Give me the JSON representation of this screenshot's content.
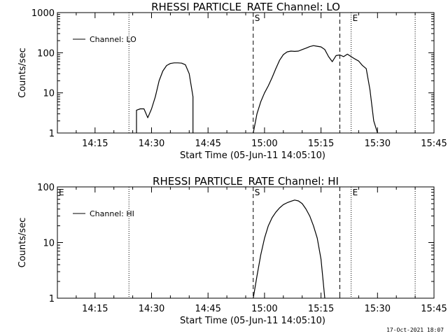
{
  "footer_stamp": "17-Oct-2021 18:07",
  "chart_data": [
    {
      "type": "line",
      "title": "RHESSI PARTICLE_RATE Channel: LO",
      "xlabel": "Start Time (05-Jun-11 14:05:10)",
      "ylabel": "Counts/sec",
      "yscale": "log",
      "ylim": [
        1,
        1000
      ],
      "xlim_minutes": [
        0,
        100
      ],
      "x_ticks": [
        "14:15",
        "14:30",
        "14:45",
        "15:00",
        "15:15",
        "15:30",
        "15:45"
      ],
      "y_ticks": [
        "1",
        "10",
        "100",
        "1000"
      ],
      "legend": {
        "label": "Channel: LO",
        "placement": "top-left"
      },
      "markers": [
        {
          "type": "dotted",
          "x": "14:24",
          "label": ""
        },
        {
          "type": "dashed",
          "x": "14:57",
          "label": "S"
        },
        {
          "type": "dashed",
          "x": "15:20",
          "label": ""
        },
        {
          "type": "dotted",
          "x": "15:23",
          "label": "E"
        },
        {
          "type": "dotted",
          "x": "15:40",
          "label": ""
        }
      ],
      "series": [
        {
          "name": "Channel: LO",
          "segments": [
            [
              [
                "14:26",
                1
              ],
              [
                "14:26",
                3.7
              ],
              [
                "14:27",
                4.0
              ],
              [
                "14:28",
                4.0
              ],
              [
                "14:29",
                2.4
              ],
              [
                "14:30",
                4.0
              ],
              [
                "14:31",
                8
              ],
              [
                "14:32",
                20
              ],
              [
                "14:33",
                35
              ],
              [
                "14:34",
                48
              ],
              [
                "14:35",
                54
              ],
              [
                "14:36",
                56
              ],
              [
                "14:37",
                56
              ],
              [
                "14:38",
                55
              ],
              [
                "14:39",
                50
              ],
              [
                "14:40",
                30
              ],
              [
                "14:41",
                8
              ],
              [
                "14:41",
                1
              ]
            ],
            [
              [
                "14:57",
                1
              ],
              [
                "14:58",
                3
              ],
              [
                "14:59",
                6
              ],
              [
                "15:00",
                10
              ],
              [
                "15:01",
                15
              ],
              [
                "15:02",
                24
              ],
              [
                "15:03",
                40
              ],
              [
                "15:04",
                65
              ],
              [
                "15:05",
                90
              ],
              [
                "15:06",
                105
              ],
              [
                "15:07",
                110
              ],
              [
                "15:08",
                108
              ],
              [
                "15:09",
                110
              ],
              [
                "15:10",
                120
              ],
              [
                "15:11",
                130
              ],
              [
                "15:12",
                142
              ],
              [
                "15:13",
                150
              ],
              [
                "15:14",
                145
              ],
              [
                "15:15",
                140
              ],
              [
                "15:16",
                120
              ],
              [
                "15:17",
                80
              ],
              [
                "15:18",
                60
              ],
              [
                "15:19",
                85
              ],
              [
                "15:20",
                88
              ],
              [
                "15:21",
                80
              ],
              [
                "15:22",
                92
              ],
              [
                "15:23",
                80
              ],
              [
                "15:24",
                70
              ],
              [
                "15:25",
                62
              ],
              [
                "15:26",
                48
              ],
              [
                "15:27",
                40
              ],
              [
                "15:28",
                12
              ],
              [
                "15:29",
                2
              ],
              [
                "15:30",
                1
              ]
            ]
          ]
        }
      ]
    },
    {
      "type": "line",
      "title": "RHESSI PARTICLE_RATE Channel: HI",
      "xlabel": "Start Time (05-Jun-11 14:05:10)",
      "ylabel": "Counts/sec",
      "yscale": "log",
      "ylim": [
        1,
        100
      ],
      "xlim_minutes": [
        0,
        100
      ],
      "x_ticks": [
        "14:15",
        "14:30",
        "14:45",
        "15:00",
        "15:15",
        "15:30",
        "15:45"
      ],
      "y_ticks": [
        "1",
        "10",
        "100"
      ],
      "legend": {
        "label": "Channel: HI",
        "placement": "top-left"
      },
      "corner_label": "E",
      "markers": [
        {
          "type": "dotted",
          "x": "14:24",
          "label": ""
        },
        {
          "type": "dashed",
          "x": "14:57",
          "label": "S"
        },
        {
          "type": "dashed",
          "x": "15:20",
          "label": ""
        },
        {
          "type": "dotted",
          "x": "15:23",
          "label": "E"
        },
        {
          "type": "dotted",
          "x": "15:40",
          "label": ""
        }
      ],
      "series": [
        {
          "name": "Channel: HI",
          "segments": [
            [
              [
                "14:57",
                1
              ],
              [
                "14:58",
                2.5
              ],
              [
                "14:59",
                6
              ],
              [
                "15:00",
                12
              ],
              [
                "15:01",
                20
              ],
              [
                "15:02",
                28
              ],
              [
                "15:03",
                35
              ],
              [
                "15:04",
                42
              ],
              [
                "15:05",
                48
              ],
              [
                "15:06",
                52
              ],
              [
                "15:07",
                55
              ],
              [
                "15:08",
                58
              ],
              [
                "15:09",
                56
              ],
              [
                "15:10",
                50
              ],
              [
                "15:11",
                40
              ],
              [
                "15:12",
                30
              ],
              [
                "15:13",
                20
              ],
              [
                "15:14",
                12
              ],
              [
                "15:15",
                5
              ],
              [
                "15:16",
                1
              ]
            ]
          ]
        }
      ]
    }
  ]
}
